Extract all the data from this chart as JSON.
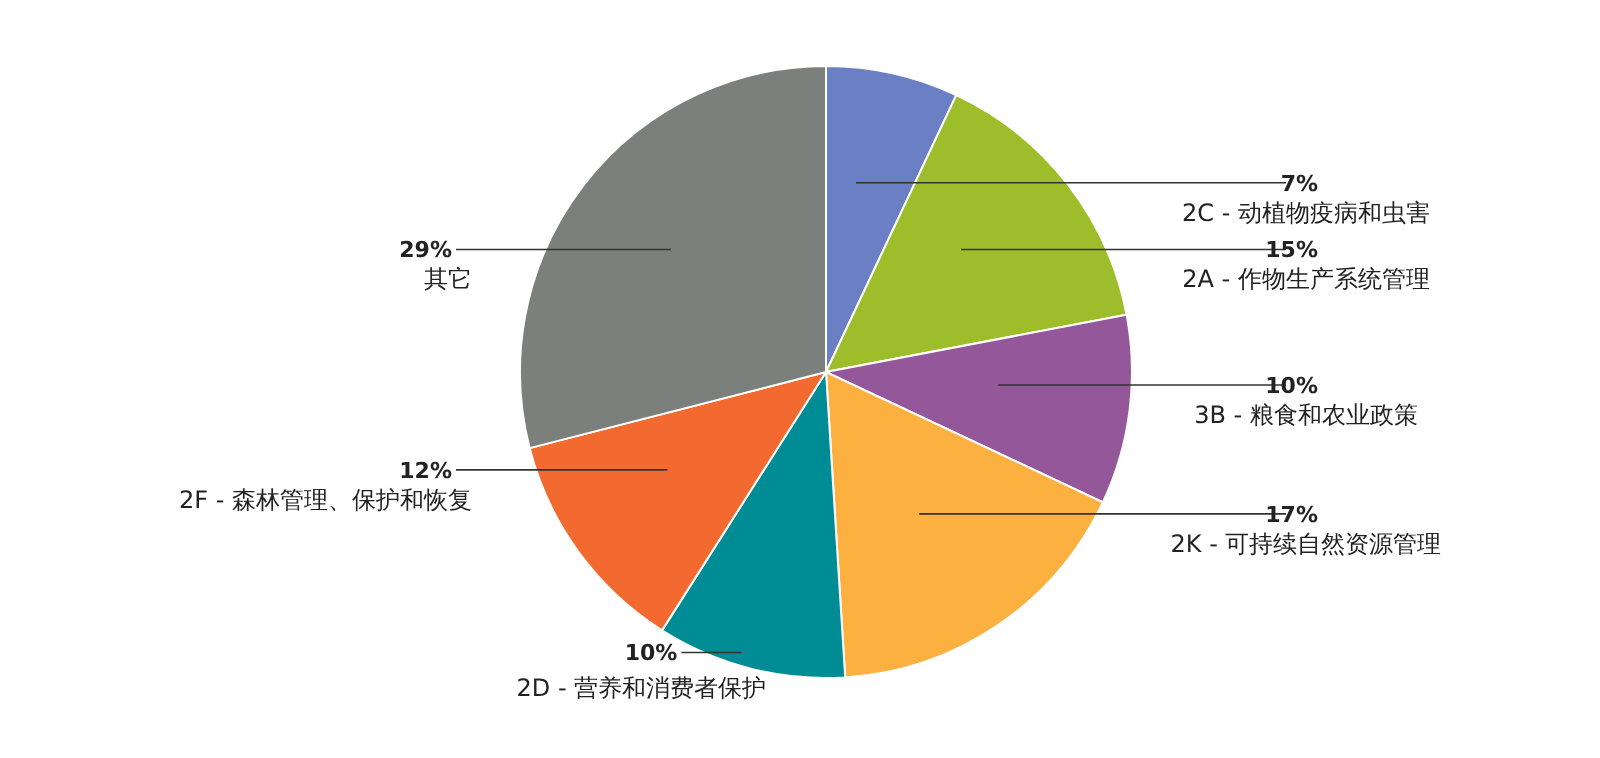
{
  "chart_data": {
    "type": "pie",
    "categories": [
      "2C - 动植物疫病和虫害",
      "2A - 作物生产系统管理",
      "3B - 粮食和农业政策",
      "2K - 可持续自然资源管理",
      "2D - 营养和消费者保护",
      "2F - 森林管理、保护和恢复",
      "其它"
    ],
    "values": [
      7,
      15,
      10,
      17,
      10,
      12,
      29
    ],
    "colors": [
      "#6b7fc4",
      "#9ebd2a",
      "#93579a",
      "#fbb040",
      "#008c95",
      "#f26a30",
      "#7b807c"
    ],
    "value_labels": [
      "7%",
      "15%",
      "10%",
      "17%",
      "10%",
      "12%",
      "29%"
    ]
  }
}
